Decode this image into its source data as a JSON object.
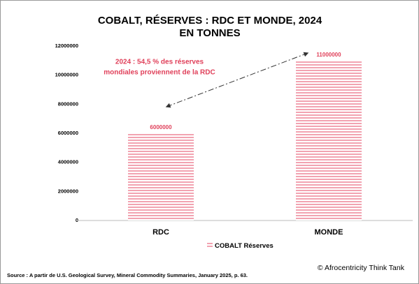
{
  "chart_data": {
    "type": "bar",
    "title": [
      "COBALT, RÉSERVES : RDC ET MONDE, 2024",
      "EN TONNES"
    ],
    "categories": [
      "RDC",
      "MONDE"
    ],
    "series": [
      {
        "name": "COBALT Réserves",
        "color": "#f2a3b1",
        "values": [
          6000000,
          11000000
        ]
      }
    ],
    "ylim": [
      0,
      12000000
    ],
    "yticks": [
      0,
      2000000,
      4000000,
      6000000,
      8000000,
      10000000,
      12000000
    ],
    "annotation": [
      "2024 : 54,5 % des réserves",
      "mondiales proviennent de la RDC"
    ],
    "source": "Source : A partir de U.S. Geological Survey, Mineral Commodity Summaries, January 2025, p. 63.",
    "credit": "© Afrocentricity Think Tank",
    "legend": "bottom"
  }
}
